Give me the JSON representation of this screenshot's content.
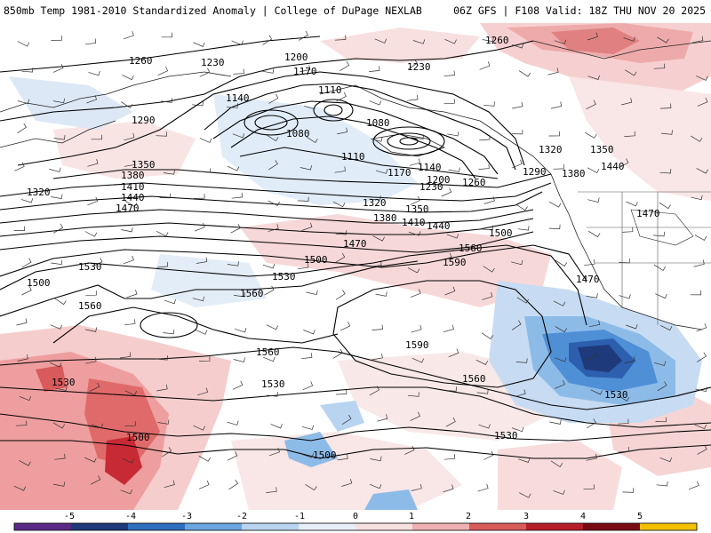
{
  "header": {
    "left_title": "850mb Temp 1981-2010 Standardized Anomaly | College of DuPage NEXLAB",
    "right_title": "06Z GFS | F108 Valid: 18Z THU NOV 20 2025"
  },
  "colorbar": {
    "ticks": [
      "-5",
      "-4",
      "-3",
      "-2",
      "-1",
      "0",
      "1",
      "2",
      "3",
      "4",
      "5"
    ],
    "colors": [
      "#5b2a86",
      "#1f3a7a",
      "#2f6fbf",
      "#6aa6e0",
      "#b8d4f0",
      "#e6eef8",
      "#f6e0e0",
      "#eeb0b0",
      "#d85a5a",
      "#b81e2a",
      "#7a0a14",
      "#f2c200"
    ]
  },
  "contour_labels": [
    {
      "id": "l1260a",
      "text": "1260"
    },
    {
      "id": "l1230a",
      "text": "1230"
    },
    {
      "id": "l1200a",
      "text": "1200"
    },
    {
      "id": "l1170a",
      "text": "1170"
    },
    {
      "id": "l1140a",
      "text": "1140"
    },
    {
      "id": "l1110a",
      "text": "1110"
    },
    {
      "id": "l1080a",
      "text": "1080"
    },
    {
      "id": "l1080b",
      "text": "1080"
    },
    {
      "id": "l1110b",
      "text": "1110"
    },
    {
      "id": "l1140b",
      "text": "1140"
    },
    {
      "id": "l1170b",
      "text": "1170"
    },
    {
      "id": "l1200b",
      "text": "1200"
    },
    {
      "id": "l1230b",
      "text": "1230"
    },
    {
      "id": "l1260b",
      "text": "1260"
    },
    {
      "id": "l1230c",
      "text": "1230"
    },
    {
      "id": "l1260c",
      "text": "1260"
    },
    {
      "id": "l1290a",
      "text": "1290"
    },
    {
      "id": "l1290b",
      "text": "1290"
    },
    {
      "id": "l1320a",
      "text": "1320"
    },
    {
      "id": "l1320b",
      "text": "1320"
    },
    {
      "id": "l1320c",
      "text": "1320"
    },
    {
      "id": "l1350a",
      "text": "1350"
    },
    {
      "id": "l1350b",
      "text": "1350"
    },
    {
      "id": "l1350c",
      "text": "1350"
    },
    {
      "id": "l1380a",
      "text": "1380"
    },
    {
      "id": "l1380b",
      "text": "1380"
    },
    {
      "id": "l1380c",
      "text": "1380"
    },
    {
      "id": "l1410a",
      "text": "1410"
    },
    {
      "id": "l1410b",
      "text": "1410"
    },
    {
      "id": "l1440a",
      "text": "1440"
    },
    {
      "id": "l1440b",
      "text": "1440"
    },
    {
      "id": "l1440c",
      "text": "1440"
    },
    {
      "id": "l1470a",
      "text": "1470"
    },
    {
      "id": "l1470b",
      "text": "1470"
    },
    {
      "id": "l1470c",
      "text": "1470"
    },
    {
      "id": "l1470d",
      "text": "1470"
    },
    {
      "id": "l1500a",
      "text": "1500"
    },
    {
      "id": "l1500b",
      "text": "1500"
    },
    {
      "id": "l1500c",
      "text": "1500"
    },
    {
      "id": "l1500d",
      "text": "1500"
    },
    {
      "id": "l1500e",
      "text": "1500"
    },
    {
      "id": "l1530a",
      "text": "1530"
    },
    {
      "id": "l1530b",
      "text": "1530"
    },
    {
      "id": "l1530c",
      "text": "1530"
    },
    {
      "id": "l1530d",
      "text": "1530"
    },
    {
      "id": "l1530e",
      "text": "1530"
    },
    {
      "id": "l1530f",
      "text": "1530"
    },
    {
      "id": "l1560a",
      "text": "1560"
    },
    {
      "id": "l1560b",
      "text": "1560"
    },
    {
      "id": "l1560c",
      "text": "1560"
    },
    {
      "id": "l1560d",
      "text": "1560"
    },
    {
      "id": "l1560e",
      "text": "1560"
    },
    {
      "id": "l1590a",
      "text": "1590"
    },
    {
      "id": "l1590b",
      "text": "1590"
    }
  ]
}
